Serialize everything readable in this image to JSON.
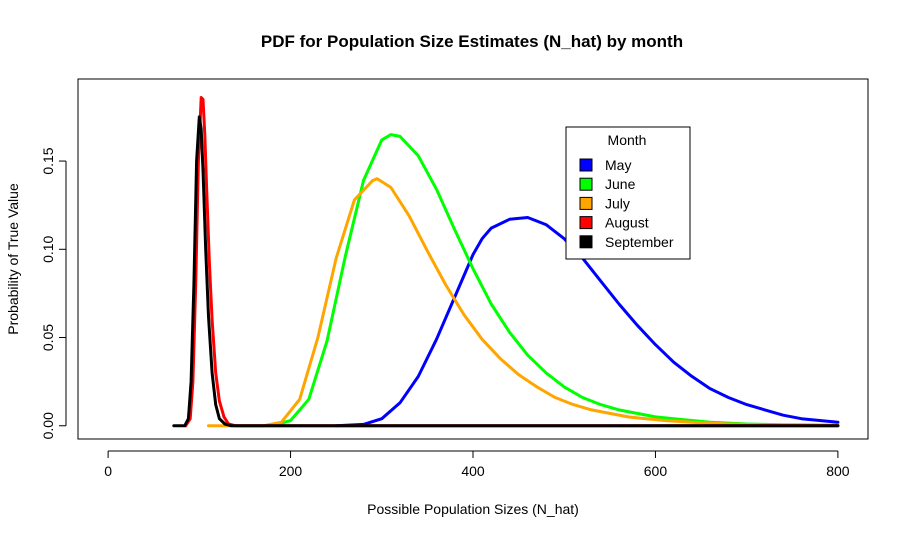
{
  "chart_data": {
    "type": "line",
    "title": "PDF for Population Size Estimates (N_hat) by month",
    "xlabel": "Possible Population Sizes (N_hat)",
    "ylabel": "Probability of True Value",
    "xlim": [
      -33,
      833
    ],
    "ylim": [
      -0.0075,
      0.1965
    ],
    "xticks": [
      0,
      200,
      400,
      600,
      800
    ],
    "xtick_labels": [
      "0",
      "200",
      "400",
      "600",
      "800"
    ],
    "yticks": [
      0.0,
      0.05,
      0.1,
      0.15
    ],
    "ytick_labels": [
      "0.00",
      "0.05",
      "0.10",
      "0.15"
    ],
    "grid": false,
    "legend": {
      "title": "Month",
      "position": "top-right",
      "entries": [
        "May",
        "June",
        "July",
        "August",
        "September"
      ]
    },
    "series": [
      {
        "name": "May",
        "color": "#0000ff",
        "x": [
          250,
          280,
          300,
          320,
          340,
          360,
          380,
          400,
          410,
          420,
          440,
          460,
          480,
          500,
          520,
          540,
          560,
          580,
          600,
          620,
          640,
          660,
          680,
          700,
          720,
          740,
          760,
          780,
          800
        ],
        "y": [
          0.0,
          0.0008,
          0.004,
          0.013,
          0.028,
          0.049,
          0.073,
          0.097,
          0.106,
          0.112,
          0.117,
          0.118,
          0.114,
          0.106,
          0.095,
          0.082,
          0.069,
          0.057,
          0.046,
          0.036,
          0.028,
          0.021,
          0.016,
          0.012,
          0.009,
          0.006,
          0.004,
          0.003,
          0.002
        ]
      },
      {
        "name": "June",
        "color": "#00ff00",
        "x": [
          180,
          200,
          220,
          240,
          260,
          280,
          300,
          310,
          320,
          340,
          360,
          380,
          400,
          420,
          440,
          460,
          480,
          500,
          520,
          540,
          560,
          580,
          600,
          620,
          640,
          660,
          680,
          700,
          720,
          740,
          760,
          780,
          800
        ],
        "y": [
          0.0,
          0.003,
          0.015,
          0.048,
          0.096,
          0.139,
          0.162,
          0.165,
          0.164,
          0.153,
          0.134,
          0.111,
          0.089,
          0.069,
          0.053,
          0.04,
          0.03,
          0.022,
          0.016,
          0.012,
          0.009,
          0.007,
          0.005,
          0.004,
          0.003,
          0.002,
          0.0015,
          0.001,
          0.0008,
          0.0006,
          0.0005,
          0.0004,
          0.0003
        ]
      },
      {
        "name": "July",
        "color": "#ffa500",
        "x": [
          110,
          170,
          190,
          210,
          230,
          250,
          270,
          290,
          295,
          310,
          330,
          350,
          370,
          390,
          410,
          430,
          450,
          470,
          490,
          510,
          530,
          550,
          570,
          590,
          610,
          640,
          680,
          720,
          760,
          800
        ],
        "y": [
          0.0,
          0.0,
          0.002,
          0.015,
          0.05,
          0.095,
          0.128,
          0.139,
          0.14,
          0.135,
          0.119,
          0.099,
          0.08,
          0.063,
          0.049,
          0.038,
          0.029,
          0.022,
          0.016,
          0.012,
          0.009,
          0.007,
          0.005,
          0.004,
          0.003,
          0.002,
          0.001,
          0.0005,
          0.0002,
          0.0001
        ]
      },
      {
        "name": "August",
        "color": "#ff0000",
        "x": [
          85,
          90,
          93,
          96,
          99,
          102,
          104,
          106,
          108,
          111,
          114,
          118,
          122,
          127,
          132,
          140,
          800
        ],
        "y": [
          0.0,
          0.004,
          0.025,
          0.08,
          0.15,
          0.186,
          0.185,
          0.165,
          0.135,
          0.092,
          0.06,
          0.03,
          0.014,
          0.005,
          0.001,
          0.0,
          0.0
        ]
      },
      {
        "name": "September",
        "color": "#000000",
        "x": [
          72,
          84,
          88,
          91,
          94,
          97,
          100,
          102,
          104,
          107,
          110,
          114,
          118,
          122,
          128,
          135,
          800
        ],
        "y": [
          0.0,
          0.0,
          0.004,
          0.025,
          0.08,
          0.15,
          0.175,
          0.168,
          0.145,
          0.1,
          0.062,
          0.03,
          0.012,
          0.004,
          0.001,
          0.0,
          0.0
        ]
      }
    ]
  }
}
